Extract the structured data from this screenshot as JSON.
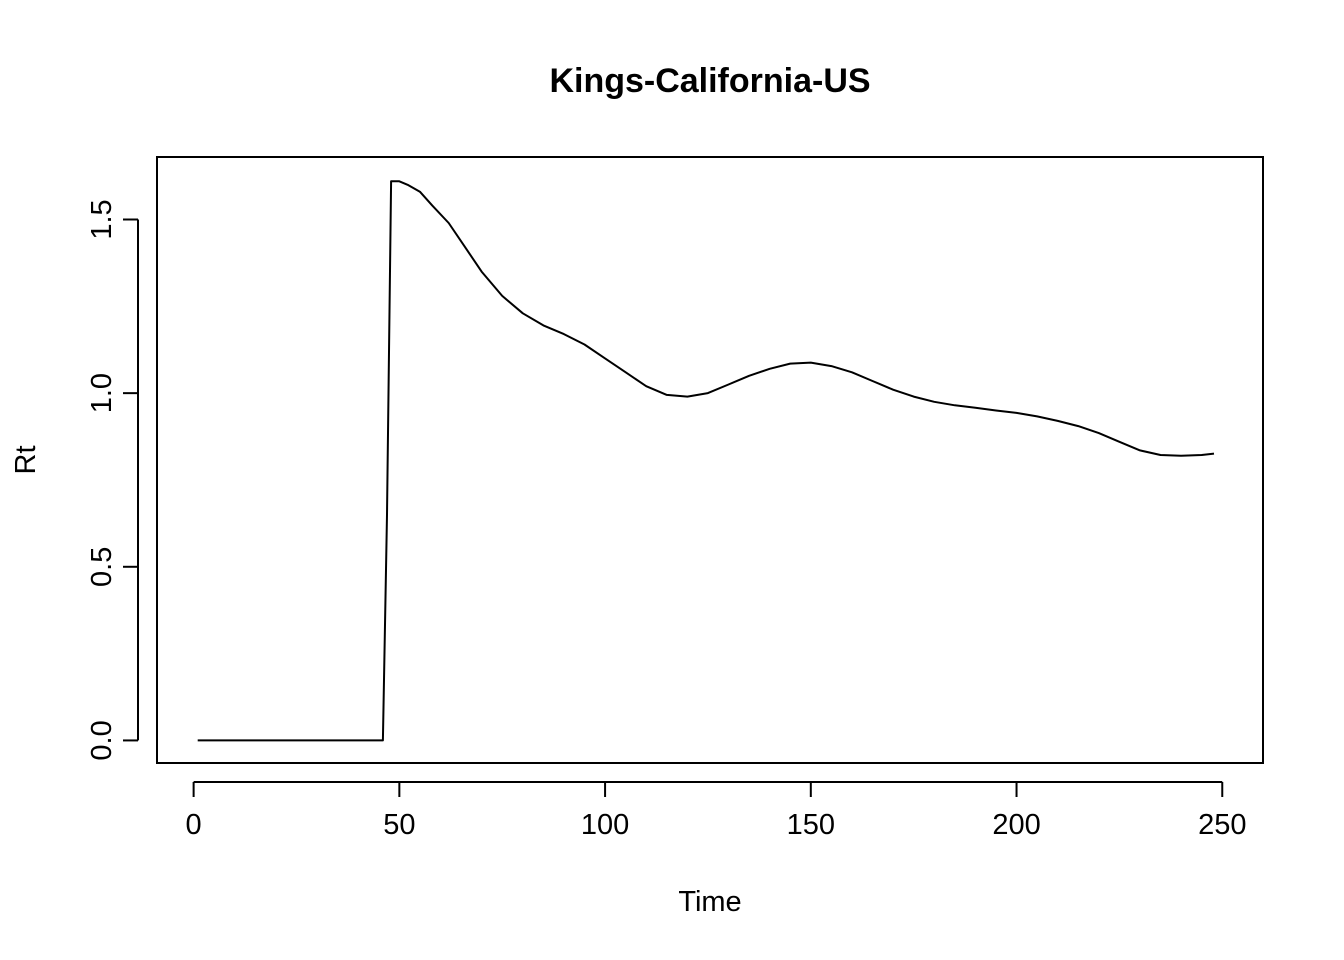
{
  "chart_data": {
    "type": "line",
    "title": "Kings-California-US",
    "xlabel": "Time",
    "ylabel": "Rt",
    "xlim": [
      -8.9,
      259.9
    ],
    "ylim": [
      -0.065,
      1.68
    ],
    "x_ticks": [
      0,
      50,
      100,
      150,
      200,
      250
    ],
    "x_tick_labels": [
      "0",
      "50",
      "100",
      "150",
      "200",
      "250"
    ],
    "y_ticks": [
      0.0,
      0.5,
      1.0,
      1.5
    ],
    "y_tick_labels": [
      "0.0",
      "0.5",
      "1.0",
      "1.5"
    ],
    "grid": false,
    "legend": "none",
    "line_color": "#000000",
    "series": [
      {
        "points": [
          [
            1,
            0.0
          ],
          [
            10,
            0.0
          ],
          [
            20,
            0.0
          ],
          [
            30,
            0.0
          ],
          [
            40,
            0.0
          ],
          [
            46,
            0.0
          ],
          [
            47,
            0.65
          ],
          [
            48,
            1.61
          ],
          [
            50,
            1.61
          ],
          [
            52,
            1.6
          ],
          [
            55,
            1.58
          ],
          [
            58,
            1.54
          ],
          [
            62,
            1.49
          ],
          [
            66,
            1.42
          ],
          [
            70,
            1.35
          ],
          [
            75,
            1.28
          ],
          [
            80,
            1.23
          ],
          [
            85,
            1.195
          ],
          [
            90,
            1.17
          ],
          [
            95,
            1.14
          ],
          [
            100,
            1.1
          ],
          [
            105,
            1.06
          ],
          [
            110,
            1.02
          ],
          [
            115,
            0.995
          ],
          [
            120,
            0.99
          ],
          [
            125,
            1.0
          ],
          [
            130,
            1.025
          ],
          [
            135,
            1.05
          ],
          [
            140,
            1.07
          ],
          [
            145,
            1.085
          ],
          [
            150,
            1.088
          ],
          [
            155,
            1.078
          ],
          [
            160,
            1.06
          ],
          [
            165,
            1.035
          ],
          [
            170,
            1.01
          ],
          [
            175,
            0.99
          ],
          [
            180,
            0.975
          ],
          [
            185,
            0.965
          ],
          [
            190,
            0.958
          ],
          [
            195,
            0.95
          ],
          [
            200,
            0.943
          ],
          [
            205,
            0.933
          ],
          [
            210,
            0.92
          ],
          [
            215,
            0.905
          ],
          [
            220,
            0.885
          ],
          [
            225,
            0.86
          ],
          [
            230,
            0.835
          ],
          [
            235,
            0.822
          ],
          [
            240,
            0.82
          ],
          [
            245,
            0.822
          ],
          [
            248,
            0.826
          ]
        ]
      }
    ]
  }
}
